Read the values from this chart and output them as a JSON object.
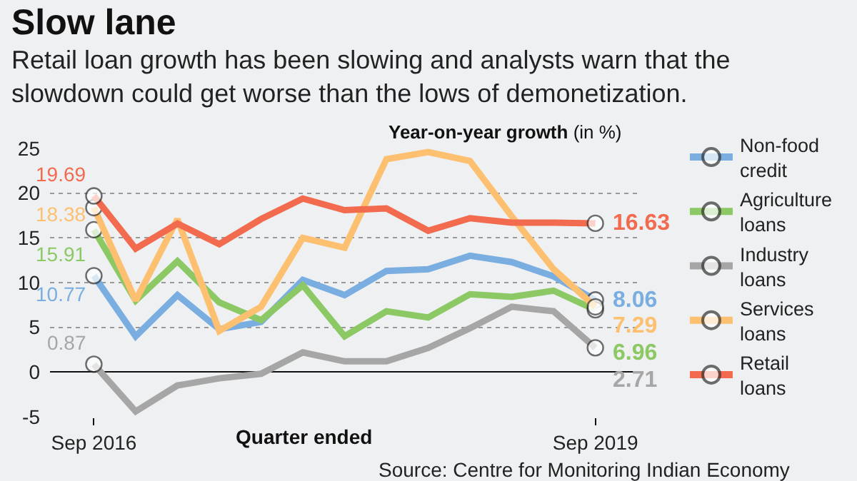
{
  "chart_data": {
    "type": "line",
    "title": "Slow lane",
    "subtitle": "Retail loan growth has been slowing and analysts warn that the slowdown could get worse than the lows of demonetization.",
    "ylabel": "Year-on-year growth (in %)",
    "xlabel": "Quarter ended",
    "annotations": [
      "Source: Centre for Monitoring Indian Economy"
    ],
    "categories": [
      "Sep 2016",
      null,
      null,
      null,
      null,
      null,
      null,
      null,
      null,
      null,
      null,
      null,
      "Sep 2019"
    ],
    "series": [
      {
        "name": "Non-food credit",
        "color": "#7aaee0",
        "values": [
          10.77,
          4.0,
          8.6,
          4.8,
          5.6,
          10.3,
          8.6,
          11.3,
          11.5,
          13.0,
          12.3,
          10.7,
          8.06
        ],
        "value_labels": [
          "10.77",
          null,
          null,
          null,
          null,
          null,
          null,
          null,
          null,
          null,
          null,
          null,
          "8.06"
        ]
      },
      {
        "name": "Agriculture loans",
        "color": "#8cc965",
        "values": [
          15.91,
          8.0,
          12.4,
          7.8,
          5.8,
          9.7,
          4.0,
          6.8,
          6.1,
          8.7,
          8.4,
          9.1,
          6.96
        ],
        "value_labels": [
          "15.91",
          null,
          null,
          null,
          null,
          null,
          null,
          null,
          null,
          null,
          null,
          null,
          "6.96"
        ]
      },
      {
        "name": "Industry loans",
        "color": "#a6a6a6",
        "values": [
          0.87,
          -4.4,
          -1.5,
          -0.7,
          -0.2,
          2.2,
          1.2,
          1.2,
          2.7,
          4.9,
          7.3,
          6.8,
          2.71
        ],
        "value_labels": [
          "0.87",
          null,
          null,
          null,
          null,
          null,
          null,
          null,
          null,
          null,
          null,
          null,
          "2.71"
        ]
      },
      {
        "name": "Services loans",
        "color": "#fdc070",
        "values": [
          18.38,
          8.0,
          17.1,
          4.6,
          7.3,
          15.0,
          13.9,
          23.8,
          24.6,
          23.6,
          17.4,
          11.5,
          7.29
        ],
        "value_labels": [
          "18.38",
          null,
          null,
          null,
          null,
          null,
          null,
          null,
          null,
          null,
          null,
          null,
          "7.29"
        ]
      },
      {
        "name": "Retail loans",
        "color": "#f26b4f",
        "values": [
          19.69,
          13.8,
          16.6,
          14.3,
          17.1,
          19.4,
          18.1,
          18.3,
          15.8,
          17.2,
          16.7,
          16.7,
          16.63
        ],
        "value_labels": [
          "19.69",
          null,
          null,
          null,
          null,
          null,
          null,
          null,
          null,
          null,
          null,
          null,
          "16.63"
        ]
      }
    ],
    "ylim": [
      -5,
      25
    ],
    "yticks": [
      -5,
      0,
      5,
      10,
      15,
      20,
      25
    ],
    "grid": "y",
    "legend": "right",
    "line_style": "solid"
  }
}
